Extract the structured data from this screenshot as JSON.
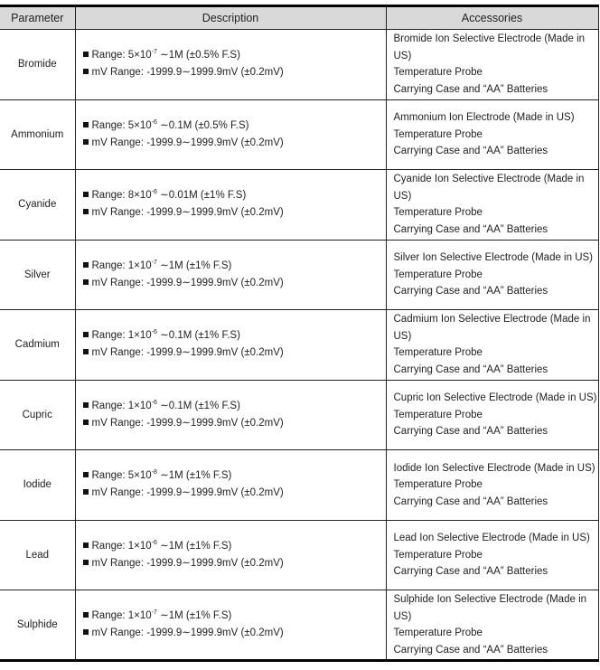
{
  "headers": [
    "Parameter",
    "Description",
    "Accessories"
  ],
  "mv_range": "mV Range: -1999.9∼1999.9mV (±0.2mV)",
  "rows": [
    {
      "parameter": "Bromide",
      "range_pre": "Range: 5×10",
      "exp": "-7",
      "range_post": " ∼1M (±0.5% F.S)",
      "accessories": [
        "Bromide Ion Selective Electrode (Made in US)",
        "Temperature Probe",
        "Carrying Case and “AA” Batteries"
      ]
    },
    {
      "parameter": "Ammonium",
      "range_pre": "Range: 5×10",
      "exp": "-6",
      "range_post": " ∼0.1M (±0.5% F.S)",
      "accessories": [
        "Ammonium Ion Electrode (Made in US)",
        "Temperature Probe",
        "Carrying Case and “AA” Batteries"
      ]
    },
    {
      "parameter": "Cyanide",
      "range_pre": "Range: 8×10",
      "exp": "-6",
      "range_post": " ∼0.01M (±1% F.S)",
      "accessories": [
        "Cyanide Ion Selective Electrode (Made in US)",
        "Temperature Probe",
        "Carrying Case and “AA” Batteries"
      ]
    },
    {
      "parameter": "Silver",
      "range_pre": "Range: 1×10",
      "exp": "-7",
      "range_post": " ∼1M (±1% F.S)",
      "accessories": [
        "Silver Ion Selective Electrode (Made in US)",
        "Temperature Probe",
        "Carrying Case and “AA” Batteries"
      ]
    },
    {
      "parameter": "Cadmium",
      "range_pre": "Range: 1×10",
      "exp": "-6",
      "range_post": " ∼0.1M (±1% F.S)",
      "accessories": [
        "Cadmium Ion Selective Electrode (Made in US)",
        "Temperature Probe",
        "Carrying Case and “AA” Batteries"
      ]
    },
    {
      "parameter": "Cupric",
      "range_pre": "Range: 1×10",
      "exp": "-6",
      "range_post": " ∼0.1M (±1% F.S)",
      "accessories": [
        "Cupric Ion Selective Electrode (Made in US)",
        "Temperature Probe",
        "Carrying Case and “AA” Batteries"
      ]
    },
    {
      "parameter": "Iodide",
      "range_pre": "Range: 5×10",
      "exp": "-8",
      "range_post": " ∼1M (±1% F.S)",
      "accessories": [
        "Iodide Ion Selective Electrode (Made in US)",
        "Temperature Probe",
        "Carrying Case and “AA” Batteries"
      ]
    },
    {
      "parameter": "Lead",
      "range_pre": "Range: 1×10",
      "exp": "-6",
      "range_post": " ∼1M (±1% F.S)",
      "accessories": [
        "Lead Ion Selective Electrode (Made in US)",
        "Temperature Probe",
        "Carrying Case and “AA” Batteries"
      ]
    },
    {
      "parameter": "Sulphide",
      "range_pre": "Range: 1×10",
      "exp": "-7",
      "range_post": " ∼1M (±1% F.S)",
      "accessories": [
        "Sulphide Ion Selective Electrode (Made in US)",
        "Temperature Probe",
        "Carrying Case and “AA” Batteries"
      ]
    }
  ]
}
